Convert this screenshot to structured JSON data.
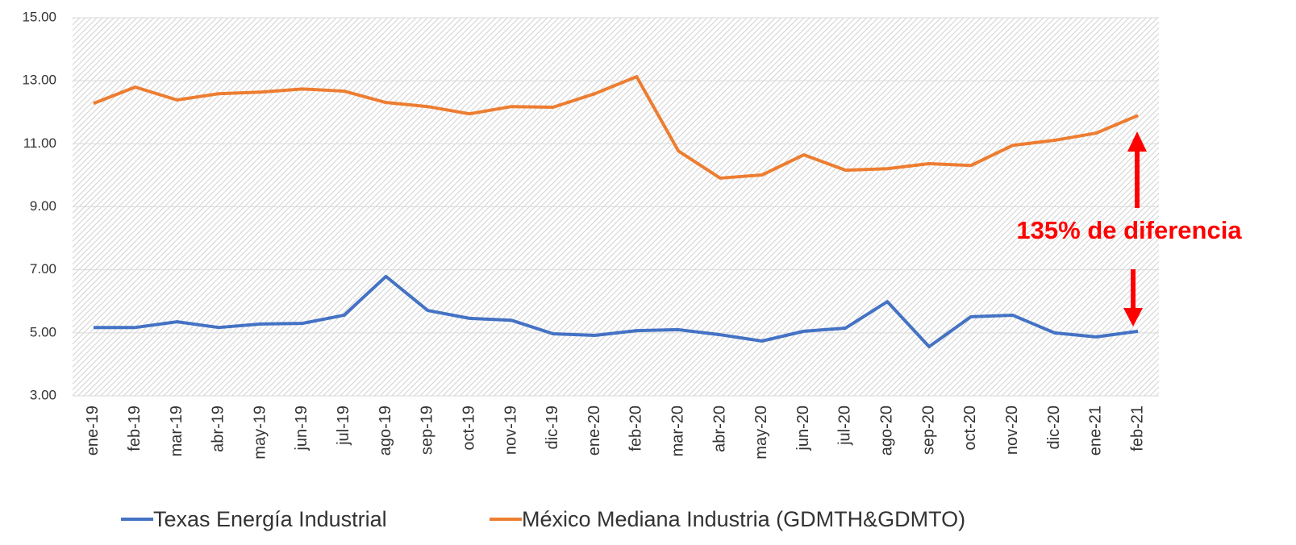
{
  "chart_data": {
    "type": "line",
    "categories": [
      "ene-19",
      "feb-19",
      "mar-19",
      "abr-19",
      "may-19",
      "jun-19",
      "jul-19",
      "ago-19",
      "sep-19",
      "oct-19",
      "nov-19",
      "dic-19",
      "ene-20",
      "feb-20",
      "mar-20",
      "abr-20",
      "may-20",
      "jun-20",
      "jul-20",
      "ago-20",
      "sep-20",
      "oct-20",
      "nov-20",
      "dic-20",
      "ene-21",
      "feb-21"
    ],
    "series": [
      {
        "name": "Texas Energía Industrial",
        "color": "#4472c4",
        "values": [
          5.17,
          5.17,
          5.35,
          5.17,
          5.28,
          5.3,
          5.56,
          6.79,
          5.71,
          5.46,
          5.4,
          4.97,
          4.92,
          5.07,
          5.1,
          4.94,
          4.74,
          5.05,
          5.15,
          5.99,
          4.56,
          5.51,
          5.56,
          5.0,
          4.87,
          5.05
        ]
      },
      {
        "name": "México Mediana Industria (GDMTH&GDMTO)",
        "color": "#ed7d31",
        "values": [
          12.28,
          12.8,
          12.39,
          12.59,
          12.64,
          12.74,
          12.67,
          12.31,
          12.18,
          11.95,
          12.18,
          12.16,
          12.59,
          13.13,
          10.77,
          9.91,
          10.01,
          10.65,
          10.16,
          10.21,
          10.37,
          10.31,
          10.95,
          11.11,
          11.34,
          11.9
        ]
      }
    ],
    "ylim": [
      3,
      15
    ],
    "yticks": [
      {
        "value": 3,
        "label": "3.00"
      },
      {
        "value": 5,
        "label": "5.00"
      },
      {
        "value": 7,
        "label": "7.00"
      },
      {
        "value": 9,
        "label": "9.00"
      },
      {
        "value": 11,
        "label": "11.00"
      },
      {
        "value": 13,
        "label": "13.00"
      },
      {
        "value": 15,
        "label": "15.00"
      }
    ],
    "grid": true,
    "annotation": "135% de diferencia",
    "legend": "bottom"
  }
}
